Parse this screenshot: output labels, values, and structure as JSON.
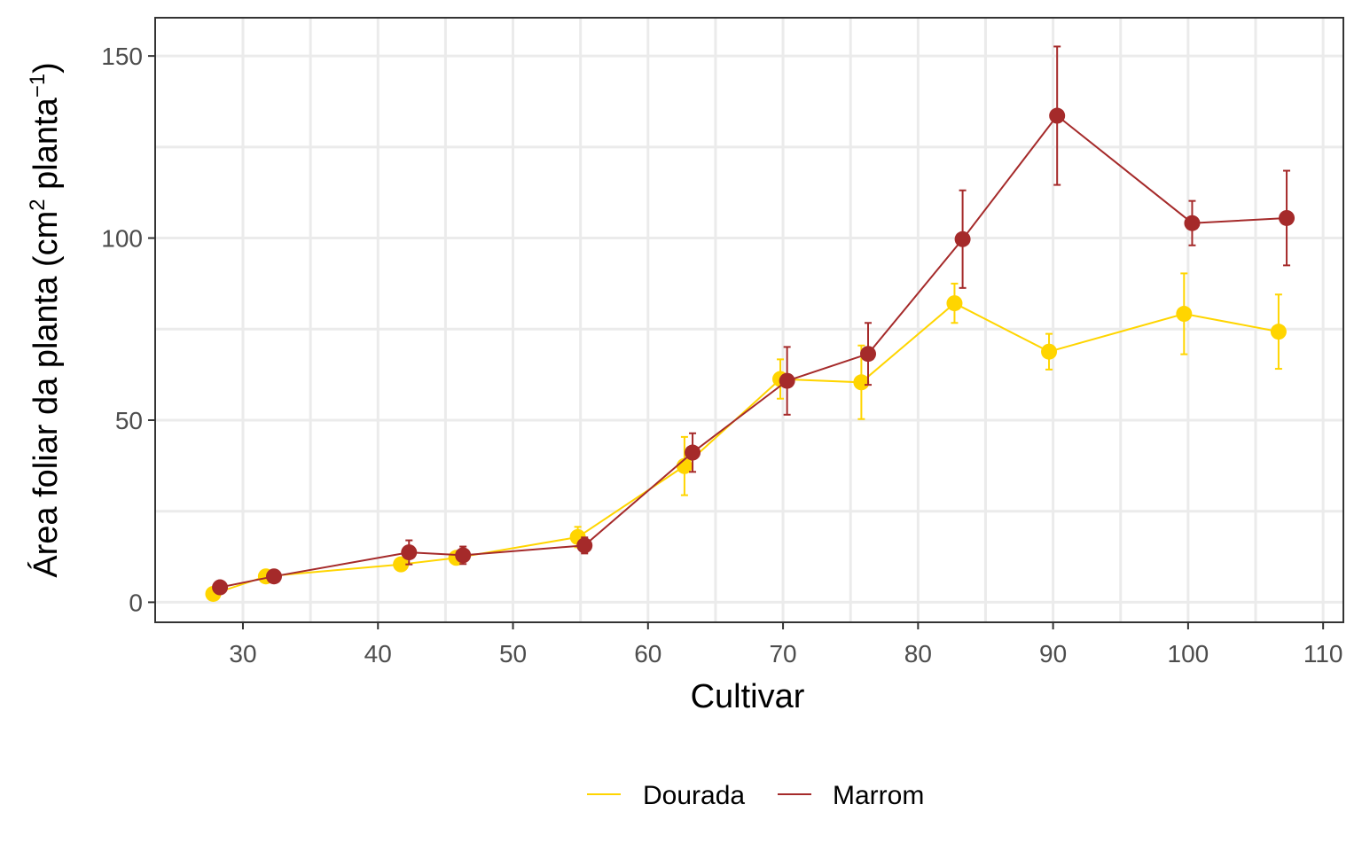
{
  "chart_data": {
    "type": "line",
    "xlabel": "Cultivar",
    "ylabel": "Área foliar da planta (cm",
    "ylabel_sup1": "2",
    "ylabel_mid": " planta",
    "ylabel_sup2": "−1",
    "ylabel_end": ")",
    "xlim": [
      23.5,
      111.5
    ],
    "ylim": [
      -5.5,
      160.5
    ],
    "x_ticks": [
      30,
      40,
      50,
      60,
      70,
      80,
      90,
      100,
      110
    ],
    "y_ticks": [
      0,
      50,
      100,
      150
    ],
    "grid": true,
    "legend_position": "bottom",
    "series": [
      {
        "name": "Dourada",
        "color": "#FFD500",
        "points": [
          {
            "x": 27.8,
            "y": 2.3,
            "err": 0
          },
          {
            "x": 31.7,
            "y": 7.1,
            "err": 0
          },
          {
            "x": 41.7,
            "y": 10.4,
            "err": 0
          },
          {
            "x": 45.8,
            "y": 12.2,
            "err": 0
          },
          {
            "x": 54.8,
            "y": 17.9,
            "err": 2.8
          },
          {
            "x": 62.7,
            "y": 37.4,
            "err": 8.0
          },
          {
            "x": 69.8,
            "y": 61.3,
            "err": 5.4
          },
          {
            "x": 75.8,
            "y": 60.4,
            "err": 10.1
          },
          {
            "x": 82.7,
            "y": 82.1,
            "err": 5.4
          },
          {
            "x": 89.7,
            "y": 68.8,
            "err": 4.9
          },
          {
            "x": 99.7,
            "y": 79.2,
            "err": 11.1
          },
          {
            "x": 106.7,
            "y": 74.3,
            "err": 10.2
          }
        ]
      },
      {
        "name": "Marrom",
        "color": "#A52A2A",
        "points": [
          {
            "x": 28.3,
            "y": 4.1,
            "err": 0
          },
          {
            "x": 32.3,
            "y": 7.1,
            "err": 0
          },
          {
            "x": 42.3,
            "y": 13.7,
            "err": 3.3
          },
          {
            "x": 46.3,
            "y": 12.9,
            "err": 2.4
          },
          {
            "x": 55.3,
            "y": 15.6,
            "err": 2.2
          },
          {
            "x": 63.3,
            "y": 41.1,
            "err": 5.3
          },
          {
            "x": 70.3,
            "y": 60.8,
            "err": 9.3
          },
          {
            "x": 76.3,
            "y": 68.2,
            "err": 8.5
          },
          {
            "x": 83.3,
            "y": 99.7,
            "err": 13.4
          },
          {
            "x": 90.3,
            "y": 133.6,
            "err": 19.0
          },
          {
            "x": 100.3,
            "y": 104.1,
            "err": 6.1
          },
          {
            "x": 107.3,
            "y": 105.5,
            "err": 13.0
          }
        ]
      }
    ]
  }
}
